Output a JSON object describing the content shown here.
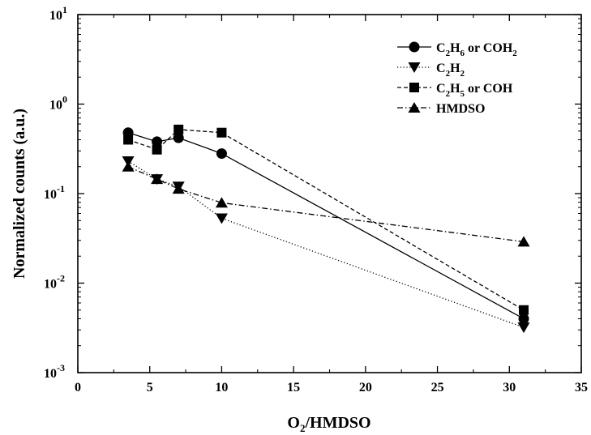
{
  "chart_data": {
    "type": "scatter",
    "xlabel": {
      "main": "O",
      "sub": "2",
      "rest": "/HMDSO"
    },
    "ylabel": "Normalized counts (a.u.)",
    "xlim": [
      0,
      35
    ],
    "ylim": [
      0.001,
      10
    ],
    "yscale": "log",
    "grid": false,
    "legend_position": "top-right",
    "x_ticks": [
      "0",
      "5",
      "10",
      "15",
      "20",
      "25",
      "30",
      "35"
    ],
    "y_ticks": [
      {
        "base": "10",
        "exp": "1"
      },
      {
        "base": "10",
        "exp": "0"
      },
      {
        "base": "10",
        "exp": "-1"
      },
      {
        "base": "10",
        "exp": "-2"
      },
      {
        "base": "10",
        "exp": "-3"
      }
    ],
    "series": [
      {
        "name": "C2H6 or COH2",
        "label_parts": [
          [
            "C",
            ""
          ],
          [
            "2",
            "sub"
          ],
          [
            "H",
            ""
          ],
          [
            "6",
            "sub"
          ],
          [
            " or COH",
            ""
          ],
          [
            "2",
            "sub"
          ]
        ],
        "marker": "circle",
        "line": "solid",
        "x": [
          3.5,
          5.5,
          7,
          10,
          31
        ],
        "y": [
          0.48,
          0.38,
          0.42,
          0.28,
          0.004
        ]
      },
      {
        "name": "C2H2",
        "label_parts": [
          [
            "C",
            ""
          ],
          [
            "2",
            "sub"
          ],
          [
            "H",
            ""
          ],
          [
            "2",
            "sub"
          ]
        ],
        "marker": "triangle-down",
        "line": "dotted",
        "x": [
          3.5,
          5.5,
          7,
          10,
          31
        ],
        "y": [
          0.23,
          0.145,
          0.12,
          0.053,
          0.0032
        ]
      },
      {
        "name": "C2H5 or COH",
        "label_parts": [
          [
            "C",
            ""
          ],
          [
            "2",
            "sub"
          ],
          [
            "H",
            ""
          ],
          [
            "5",
            "sub"
          ],
          [
            " or COH",
            ""
          ]
        ],
        "marker": "square",
        "line": "dashed",
        "x": [
          3.5,
          5.5,
          7,
          10,
          31
        ],
        "y": [
          0.4,
          0.31,
          0.52,
          0.48,
          0.005
        ]
      },
      {
        "name": "HMDSO",
        "label_parts": [
          [
            "HMDSO",
            ""
          ]
        ],
        "marker": "triangle-up",
        "line": "dashdot",
        "x": [
          3.5,
          5.5,
          7,
          10,
          31
        ],
        "y": [
          0.2,
          0.145,
          0.113,
          0.079,
          0.029
        ]
      }
    ]
  }
}
